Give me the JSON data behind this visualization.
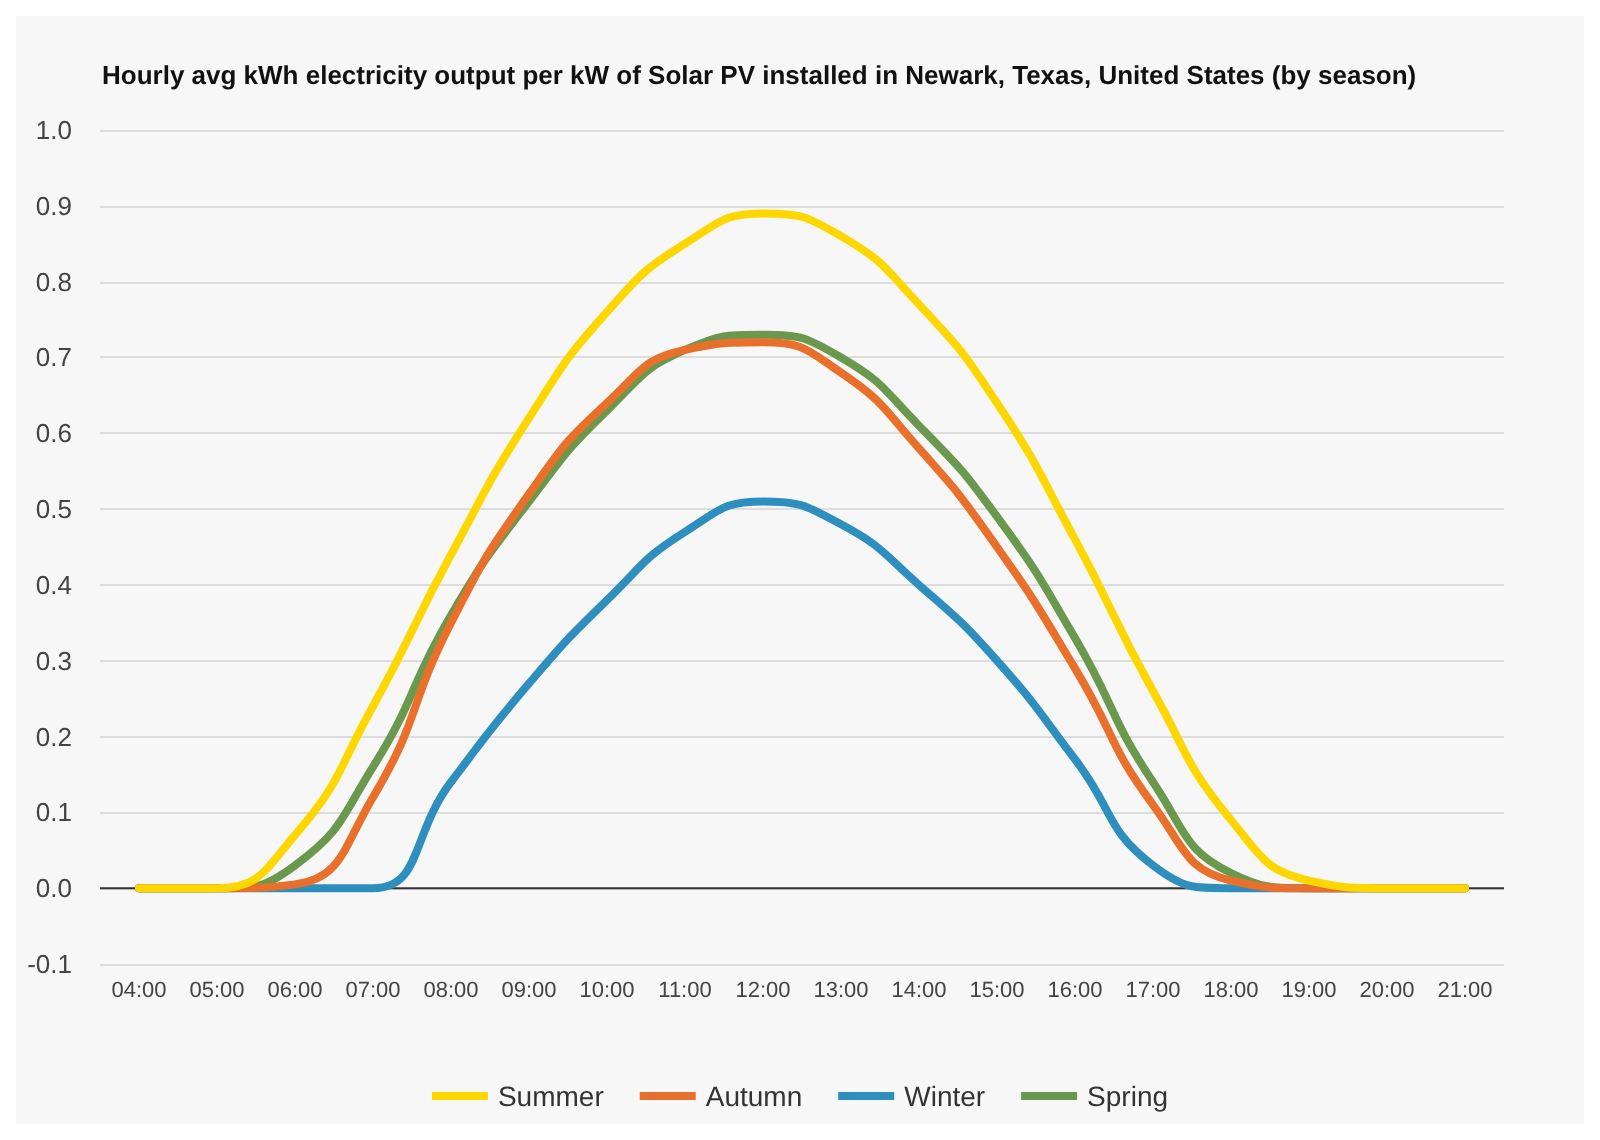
{
  "chart_data": {
    "type": "line",
    "title": "Hourly avg kWh electricity output per kW of Solar PV installed in Newark, Texas, United States (by season)",
    "x": [
      4,
      5,
      6,
      7,
      8,
      9,
      10,
      11,
      12,
      13,
      14,
      15,
      16,
      17,
      18,
      19,
      20,
      21
    ],
    "xlim": [
      3.5,
      21.5
    ],
    "xticks": [
      {
        "value": 4,
        "label": "04:00"
      },
      {
        "value": 5,
        "label": "05:00"
      },
      {
        "value": 6,
        "label": "06:00"
      },
      {
        "value": 7,
        "label": "07:00"
      },
      {
        "value": 8,
        "label": "08:00"
      },
      {
        "value": 9,
        "label": "09:00"
      },
      {
        "value": 10,
        "label": "10:00"
      },
      {
        "value": 11,
        "label": "11:00"
      },
      {
        "value": 12,
        "label": "12:00"
      },
      {
        "value": 13,
        "label": "13:00"
      },
      {
        "value": 14,
        "label": "14:00"
      },
      {
        "value": 15,
        "label": "15:00"
      },
      {
        "value": 16,
        "label": "16:00"
      },
      {
        "value": 17,
        "label": "17:00"
      },
      {
        "value": 18,
        "label": "18:00"
      },
      {
        "value": 19,
        "label": "19:00"
      },
      {
        "value": 20,
        "label": "20:00"
      },
      {
        "value": 21,
        "label": "21:00"
      }
    ],
    "ylim": [
      -0.1,
      1.0
    ],
    "yticks": [
      -0.1,
      {
        "value": 0,
        "label": "0.0"
      },
      {
        "value": 0.1,
        "label": "0.1"
      },
      {
        "value": 0.2,
        "label": "0.2"
      },
      {
        "value": 0.3,
        "label": "0.3"
      },
      {
        "value": 0.4,
        "label": "0.4"
      },
      {
        "value": 0.5,
        "label": "0.5"
      },
      {
        "value": 0.6,
        "label": "0.6"
      },
      {
        "value": 0.7,
        "label": "0.7"
      },
      {
        "value": 0.8,
        "label": "0.8"
      },
      {
        "value": 0.9,
        "label": "0.9"
      },
      {
        "value": 1.0,
        "label": "1.0"
      }
    ],
    "series": [
      {
        "name": "Summer",
        "color": "#ffd700",
        "values": [
          0,
          0,
          0.07,
          0.24,
          0.44,
          0.62,
          0.76,
          0.85,
          0.89,
          0.86,
          0.77,
          0.64,
          0.46,
          0.26,
          0.09,
          0.01,
          0,
          0
        ]
      },
      {
        "name": "Autumn",
        "color": "#e8702a",
        "values": [
          0,
          0,
          0.005,
          0.12,
          0.35,
          0.52,
          0.64,
          0.71,
          0.72,
          0.68,
          0.58,
          0.45,
          0.29,
          0.11,
          0.01,
          0,
          0,
          0
        ]
      },
      {
        "name": "Winter",
        "color": "#2e8fbf",
        "values": [
          0,
          0,
          0,
          0,
          0.14,
          0.27,
          0.38,
          0.47,
          0.51,
          0.48,
          0.4,
          0.3,
          0.17,
          0.03,
          0,
          0,
          0,
          0
        ]
      },
      {
        "name": "Spring",
        "color": "#6a994e",
        "values": [
          0,
          0,
          0.03,
          0.16,
          0.36,
          0.51,
          0.63,
          0.71,
          0.73,
          0.7,
          0.61,
          0.49,
          0.33,
          0.14,
          0.02,
          0,
          0,
          0
        ]
      }
    ],
    "grid": "y",
    "legend": "bottom",
    "marker": "none",
    "line_style": "solid"
  }
}
